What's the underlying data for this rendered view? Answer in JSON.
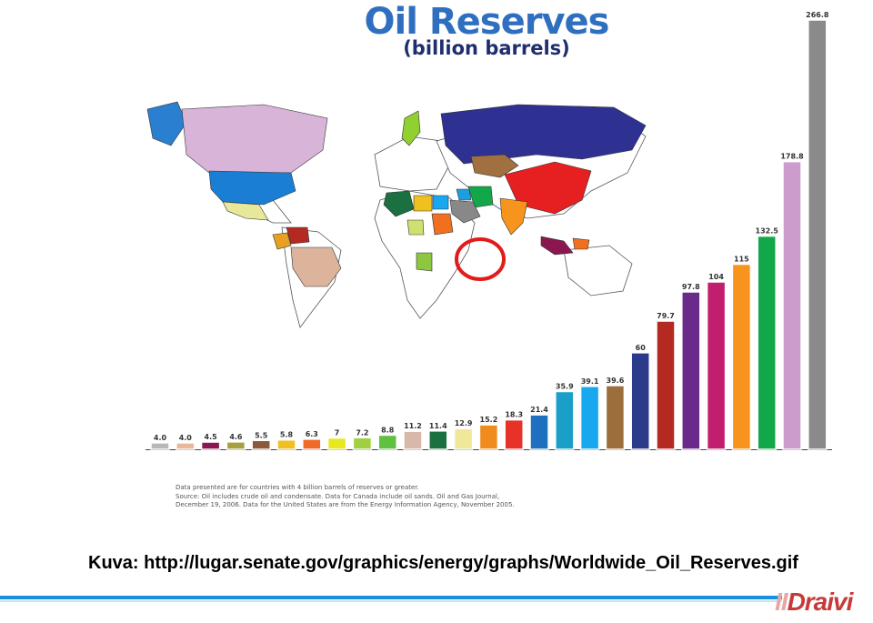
{
  "chart_data": {
    "type": "bar",
    "title": "Oil Reserves",
    "subtitle": "(billion barrels)",
    "value_labels": [
      "4.0",
      "4.0",
      "4.5",
      "4.6",
      "5.5",
      "5.8",
      "6.3",
      "7",
      "7.2",
      "8.8",
      "11.2",
      "11.4",
      "12.9",
      "15.2",
      "18.3",
      "21.4",
      "35.9",
      "39.1",
      "39.6",
      "60",
      "79.7",
      "97.8",
      "104",
      "115",
      "132.5",
      "178.8",
      "266.8"
    ],
    "values": [
      4.0,
      4.0,
      4.5,
      4.6,
      5.5,
      5.8,
      6.3,
      7,
      7.2,
      8.8,
      11.2,
      11.4,
      12.9,
      15.2,
      18.3,
      21.4,
      35.9,
      39.1,
      39.6,
      60,
      79.7,
      97.8,
      104,
      115,
      132.5,
      178.8,
      266.8
    ],
    "colors": [
      "#b8b8b8",
      "#e8b89a",
      "#8b1650",
      "#a8a040",
      "#8a5a3a",
      "#f0c020",
      "#f06a2a",
      "#e8e820",
      "#a0d040",
      "#60c040",
      "#d8b8a8",
      "#1a7040",
      "#f0e898",
      "#f08c1e",
      "#e63228",
      "#1f6fbf",
      "#1a9fc8",
      "#18a8f0",
      "#9c6e3c",
      "#2c3a8c",
      "#b42a20",
      "#6a2a8a",
      "#c21e6e",
      "#f7941d",
      "#12a84a",
      "#cc9ccc",
      "#8a8a8a"
    ],
    "ylim": [
      0,
      266.8
    ],
    "notes": [
      "Data presented are for countries with 4 billion barrels of reserves or greater.",
      "Source: Oil includes crude oil and condensate. Data for Canada include oil sands. Oil and Gas Journal,",
      "December 19, 2006. Data for the United States are from the Energy Information Agency, November 2005."
    ]
  },
  "map": {
    "colors": {
      "greenland": "#2a7fd0",
      "canada": "#d8b4d8",
      "usa": "#1a7fd4",
      "mexico": "#e8e89a",
      "venezuela": "#b42a20",
      "brazil": "#dcb49c",
      "colombia": "#e8a020",
      "russia": "#2e3192",
      "kazakhstan": "#a07040",
      "china": "#e62020",
      "india": "#f7941d",
      "iran": "#12a84a",
      "iraq": "#18a0e0",
      "saudi": "#888888",
      "norway": "#90d030",
      "algeria": "#1a7040",
      "libya": "#f0c020",
      "egypt": "#18a8f0",
      "sudan": "#f07020",
      "nigeria": "#d0e070",
      "angola": "#8dc63f",
      "indonesia": "#8b1650",
      "malaysia": "#f07020"
    }
  },
  "caption": "Kuva: http://lugar.senate.gov/graphics/energy/graphs/Worldwide_Oil_Reserves.gif",
  "logo": {
    "mark": "II",
    "text": "Draivi"
  },
  "colors": {
    "title": "#2f6fc0",
    "subtitle": "#1f2e6e",
    "footer_line": "#1b8fd8",
    "circle": "#e21b1b"
  }
}
